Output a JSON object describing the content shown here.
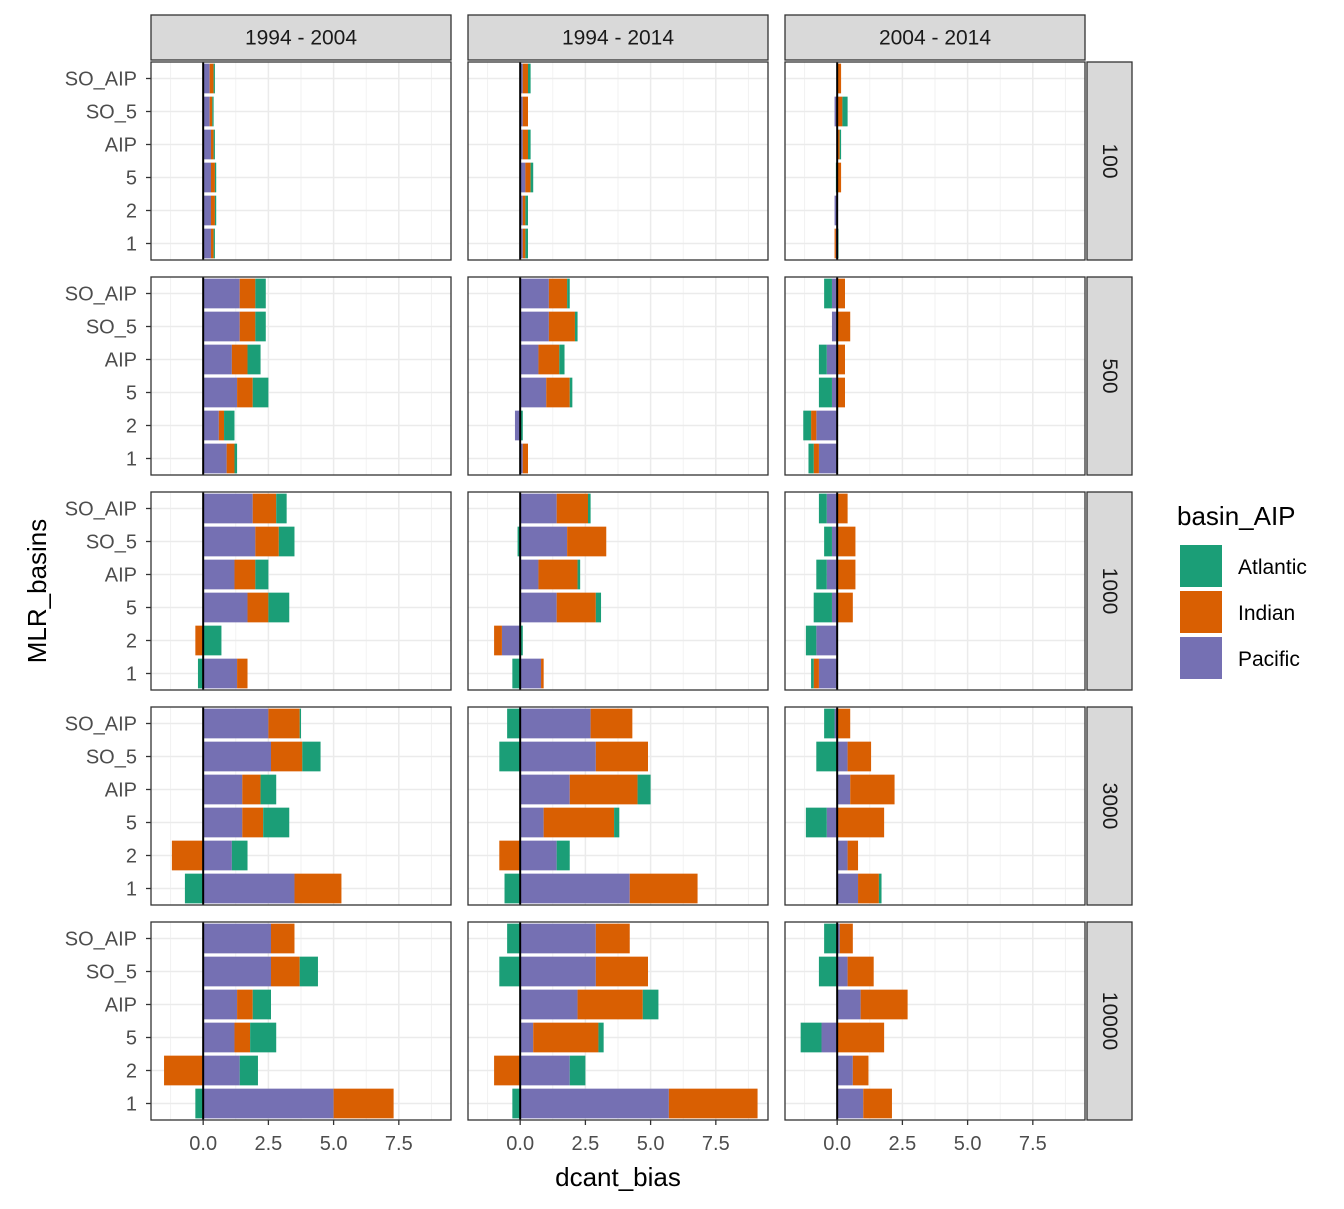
{
  "chart_data": {
    "type": "bar",
    "orientation": "horizontal",
    "stacked": true,
    "facet_cols": [
      "1994 - 2004",
      "1994 - 2014",
      "2004 - 2014"
    ],
    "facet_rows": [
      "100",
      "500",
      "1000",
      "3000",
      "10000"
    ],
    "categories": [
      "1",
      "2",
      "5",
      "AIP",
      "SO_5",
      "SO_AIP"
    ],
    "stack_order": [
      "Pacific",
      "Indian",
      "Atlantic"
    ],
    "xlabel": "dcant_bias",
    "ylabel": "MLR_basins",
    "xlim": [
      -2,
      9.5
    ],
    "x_ticks": [
      0,
      2.5,
      5,
      7.5
    ],
    "x_tick_labels": [
      "0.0",
      "2.5",
      "5.0",
      "7.5"
    ],
    "grid": true,
    "legend": {
      "title": "basin_AIP",
      "position": "right",
      "items": [
        {
          "name": "Atlantic",
          "color": "#1b9e77"
        },
        {
          "name": "Indian",
          "color": "#d95f02"
        },
        {
          "name": "Pacific",
          "color": "#7570b3"
        }
      ]
    },
    "panels": {
      "1994 - 2004": {
        "100": {
          "1": {
            "Pacific": 0.3,
            "Indian": 0.1,
            "Atlantic": 0.05
          },
          "2": {
            "Pacific": 0.3,
            "Indian": 0.15,
            "Atlantic": 0.05
          },
          "5": {
            "Pacific": 0.3,
            "Indian": 0.15,
            "Atlantic": 0.05
          },
          "AIP": {
            "Pacific": 0.3,
            "Indian": 0.1,
            "Atlantic": 0.05
          },
          "SO_5": {
            "Pacific": 0.25,
            "Indian": 0.1,
            "Atlantic": 0.05
          },
          "SO_AIP": {
            "Pacific": 0.25,
            "Indian": 0.15,
            "Atlantic": 0.05
          }
        },
        "500": {
          "1": {
            "Pacific": 0.9,
            "Indian": 0.3,
            "Atlantic": 0.1
          },
          "2": {
            "Pacific": 0.6,
            "Indian": 0.2,
            "Atlantic": 0.4
          },
          "5": {
            "Pacific": 1.3,
            "Indian": 0.6,
            "Atlantic": 0.6
          },
          "AIP": {
            "Pacific": 1.1,
            "Indian": 0.6,
            "Atlantic": 0.5
          },
          "SO_5": {
            "Pacific": 1.4,
            "Indian": 0.6,
            "Atlantic": 0.4
          },
          "SO_AIP": {
            "Pacific": 1.4,
            "Indian": 0.6,
            "Atlantic": 0.4
          }
        },
        "1000": {
          "1": {
            "Pacific": 1.3,
            "Indian": 0.4,
            "Atlantic": -0.2
          },
          "2": {
            "Pacific": 0.0,
            "Indian": -0.3,
            "Atlantic": 0.7
          },
          "5": {
            "Pacific": 1.7,
            "Indian": 0.8,
            "Atlantic": 0.8
          },
          "AIP": {
            "Pacific": 1.2,
            "Indian": 0.8,
            "Atlantic": 0.5
          },
          "SO_5": {
            "Pacific": 2.0,
            "Indian": 0.9,
            "Atlantic": 0.6
          },
          "SO_AIP": {
            "Pacific": 1.9,
            "Indian": 0.9,
            "Atlantic": 0.4
          }
        },
        "3000": {
          "1": {
            "Pacific": 3.5,
            "Indian": 1.8,
            "Atlantic": -0.7
          },
          "2": {
            "Pacific": 1.1,
            "Indian": -1.2,
            "Atlantic": 0.6
          },
          "5": {
            "Pacific": 1.5,
            "Indian": 0.8,
            "Atlantic": 1.0
          },
          "AIP": {
            "Pacific": 1.5,
            "Indian": 0.7,
            "Atlantic": 0.6
          },
          "SO_5": {
            "Pacific": 2.6,
            "Indian": 1.2,
            "Atlantic": 0.7
          },
          "SO_AIP": {
            "Pacific": 2.5,
            "Indian": 1.2,
            "Atlantic": 0.05
          }
        },
        "10000": {
          "1": {
            "Pacific": 5.0,
            "Indian": 2.3,
            "Atlantic": -0.3
          },
          "2": {
            "Pacific": 1.4,
            "Indian": -1.5,
            "Atlantic": 0.7
          },
          "5": {
            "Pacific": 1.2,
            "Indian": 0.6,
            "Atlantic": 1.0
          },
          "AIP": {
            "Pacific": 1.3,
            "Indian": 0.6,
            "Atlantic": 0.7
          },
          "SO_5": {
            "Pacific": 2.6,
            "Indian": 1.1,
            "Atlantic": 0.7
          },
          "SO_AIP": {
            "Pacific": 2.6,
            "Indian": 0.9,
            "Atlantic": 0.0
          }
        }
      },
      "1994 - 2014": {
        "100": {
          "1": {
            "Pacific": 0.1,
            "Indian": 0.1,
            "Atlantic": 0.1
          },
          "2": {
            "Pacific": 0.1,
            "Indian": 0.1,
            "Atlantic": 0.1
          },
          "5": {
            "Pacific": 0.2,
            "Indian": 0.2,
            "Atlantic": 0.1
          },
          "AIP": {
            "Pacific": 0.1,
            "Indian": 0.2,
            "Atlantic": 0.1
          },
          "SO_5": {
            "Pacific": 0.1,
            "Indian": 0.2,
            "Atlantic": 0.0
          },
          "SO_AIP": {
            "Pacific": 0.1,
            "Indian": 0.2,
            "Atlantic": 0.1
          }
        },
        "500": {
          "1": {
            "Pacific": 0.1,
            "Indian": 0.2,
            "Atlantic": 0.0
          },
          "2": {
            "Pacific": -0.2,
            "Indian": 0.0,
            "Atlantic": 0.1
          },
          "5": {
            "Pacific": 1.0,
            "Indian": 0.9,
            "Atlantic": 0.1
          },
          "AIP": {
            "Pacific": 0.7,
            "Indian": 0.8,
            "Atlantic": 0.2
          },
          "SO_5": {
            "Pacific": 1.1,
            "Indian": 1.0,
            "Atlantic": 0.1
          },
          "SO_AIP": {
            "Pacific": 1.1,
            "Indian": 0.7,
            "Atlantic": 0.1
          }
        },
        "1000": {
          "1": {
            "Pacific": 0.8,
            "Indian": 0.1,
            "Atlantic": -0.3
          },
          "2": {
            "Pacific": -0.7,
            "Indian": -0.3,
            "Atlantic": 0.1
          },
          "5": {
            "Pacific": 1.4,
            "Indian": 1.5,
            "Atlantic": 0.2
          },
          "AIP": {
            "Pacific": 0.7,
            "Indian": 1.5,
            "Atlantic": 0.1
          },
          "SO_5": {
            "Pacific": 1.8,
            "Indian": 1.5,
            "Atlantic": -0.1
          },
          "SO_AIP": {
            "Pacific": 1.4,
            "Indian": 1.2,
            "Atlantic": 0.1
          }
        },
        "3000": {
          "1": {
            "Pacific": 4.2,
            "Indian": 2.6,
            "Atlantic": -0.6
          },
          "2": {
            "Pacific": 1.4,
            "Indian": -0.8,
            "Atlantic": 0.5
          },
          "5": {
            "Pacific": 0.9,
            "Indian": 2.7,
            "Atlantic": 0.2
          },
          "AIP": {
            "Pacific": 1.9,
            "Indian": 2.6,
            "Atlantic": 0.5
          },
          "SO_5": {
            "Pacific": 2.9,
            "Indian": 2.0,
            "Atlantic": -0.8
          },
          "SO_AIP": {
            "Pacific": 2.7,
            "Indian": 1.6,
            "Atlantic": -0.5
          }
        },
        "10000": {
          "1": {
            "Pacific": 5.7,
            "Indian": 3.4,
            "Atlantic": -0.3
          },
          "2": {
            "Pacific": 1.9,
            "Indian": -1.0,
            "Atlantic": 0.6
          },
          "5": {
            "Pacific": 0.5,
            "Indian": 2.5,
            "Atlantic": 0.2
          },
          "AIP": {
            "Pacific": 2.2,
            "Indian": 2.5,
            "Atlantic": 0.6
          },
          "SO_5": {
            "Pacific": 2.9,
            "Indian": 2.0,
            "Atlantic": -0.8
          },
          "SO_AIP": {
            "Pacific": 2.9,
            "Indian": 1.3,
            "Atlantic": -0.5
          }
        }
      },
      "2004 - 2014": {
        "100": {
          "1": {
            "Pacific": -0.05,
            "Indian": -0.05,
            "Atlantic": 0.05
          },
          "2": {
            "Pacific": -0.1,
            "Indian": 0.0,
            "Atlantic": 0.0
          },
          "5": {
            "Pacific": 0.0,
            "Indian": 0.15,
            "Atlantic": -0.05
          },
          "AIP": {
            "Pacific": 0.0,
            "Indian": 0.1,
            "Atlantic": 0.05
          },
          "SO_5": {
            "Pacific": -0.1,
            "Indian": 0.2,
            "Atlantic": 0.2
          },
          "SO_AIP": {
            "Pacific": 0.0,
            "Indian": 0.15,
            "Atlantic": 0.0
          }
        },
        "500": {
          "1": {
            "Pacific": -0.7,
            "Indian": -0.2,
            "Atlantic": -0.2
          },
          "2": {
            "Pacific": -0.8,
            "Indian": -0.2,
            "Atlantic": -0.3
          },
          "5": {
            "Pacific": -0.2,
            "Indian": 0.3,
            "Atlantic": -0.5
          },
          "AIP": {
            "Pacific": -0.4,
            "Indian": 0.3,
            "Atlantic": -0.3
          },
          "SO_5": {
            "Pacific": -0.2,
            "Indian": 0.5,
            "Atlantic": 0.0
          },
          "SO_AIP": {
            "Pacific": -0.2,
            "Indian": 0.3,
            "Atlantic": -0.3
          }
        },
        "1000": {
          "1": {
            "Pacific": -0.7,
            "Indian": -0.2,
            "Atlantic": -0.1
          },
          "2": {
            "Pacific": -0.8,
            "Indian": 0.0,
            "Atlantic": -0.4
          },
          "5": {
            "Pacific": -0.2,
            "Indian": 0.6,
            "Atlantic": -0.7
          },
          "AIP": {
            "Pacific": -0.4,
            "Indian": 0.7,
            "Atlantic": -0.4
          },
          "SO_5": {
            "Pacific": -0.2,
            "Indian": 0.7,
            "Atlantic": -0.3
          },
          "SO_AIP": {
            "Pacific": -0.4,
            "Indian": 0.4,
            "Atlantic": -0.3
          }
        },
        "3000": {
          "1": {
            "Pacific": 0.8,
            "Indian": 0.8,
            "Atlantic": 0.1
          },
          "2": {
            "Pacific": 0.4,
            "Indian": 0.4,
            "Atlantic": 0.0
          },
          "5": {
            "Pacific": -0.4,
            "Indian": 1.8,
            "Atlantic": -0.8
          },
          "AIP": {
            "Pacific": 0.5,
            "Indian": 1.7,
            "Atlantic": 0.0
          },
          "SO_5": {
            "Pacific": 0.4,
            "Indian": 0.9,
            "Atlantic": -0.8
          },
          "SO_AIP": {
            "Pacific": -0.1,
            "Indian": 0.5,
            "Atlantic": -0.4
          }
        },
        "10000": {
          "1": {
            "Pacific": 1.0,
            "Indian": 1.1,
            "Atlantic": 0.0
          },
          "2": {
            "Pacific": 0.6,
            "Indian": 0.6,
            "Atlantic": 0.0
          },
          "5": {
            "Pacific": -0.6,
            "Indian": 1.8,
            "Atlantic": -0.8
          },
          "AIP": {
            "Pacific": 0.9,
            "Indian": 1.8,
            "Atlantic": 0.0
          },
          "SO_5": {
            "Pacific": 0.4,
            "Indian": 1.0,
            "Atlantic": -0.7
          },
          "SO_AIP": {
            "Pacific": 0.1,
            "Indian": 0.5,
            "Atlantic": -0.5
          }
        }
      }
    }
  }
}
